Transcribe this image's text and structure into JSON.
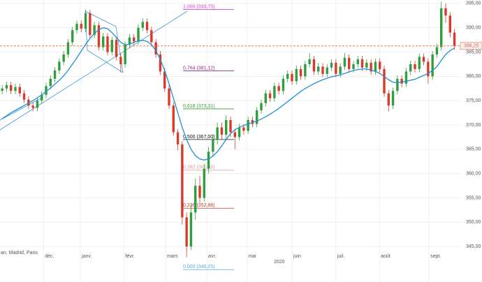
{
  "chart_data": {
    "type": "candlestick",
    "source_label": "an, Madrid, Paris",
    "year_label": "2020",
    "up_color": "#2e9e3e",
    "down_color": "#d93a2b",
    "x": [
      0,
      1,
      2,
      3,
      4,
      5,
      6,
      7,
      8,
      9,
      10,
      11,
      12,
      13,
      14,
      15,
      16,
      17,
      18,
      19,
      20,
      21,
      22,
      23,
      24,
      25,
      26,
      27,
      28,
      29,
      30,
      31,
      32,
      33,
      34,
      35,
      36,
      37,
      38,
      39,
      40,
      41,
      42,
      43,
      44,
      45,
      46,
      47,
      48,
      49,
      50,
      51,
      52,
      53,
      54,
      55,
      56,
      57,
      58,
      59,
      60,
      61,
      62,
      63,
      64,
      65,
      66,
      67,
      68,
      69,
      70,
      71,
      72,
      73,
      74,
      75,
      76,
      77,
      78,
      79,
      80,
      81,
      82,
      83,
      84,
      85,
      86,
      87,
      88,
      89,
      90,
      91,
      92,
      93,
      94,
      95,
      96,
      97,
      98,
      99,
      100,
      101,
      102,
      103
    ],
    "open": [
      377.0,
      377.5,
      378.2,
      377.0,
      377.8,
      376.5,
      375.2,
      374.0,
      373.5,
      375.0,
      376.2,
      378.0,
      379.5,
      381.2,
      383.0,
      384.5,
      387.0,
      389.5,
      390.8,
      389.8,
      393.0,
      388.5,
      390.5,
      386.0,
      388.2,
      385.0,
      387.5,
      384.0,
      382.5,
      386.5,
      388.0,
      387.2,
      390.0,
      391.2,
      389.5,
      387.0,
      384.5,
      381.0,
      377.5,
      374.0,
      368.5,
      366.0,
      351.0,
      345.0,
      352.0,
      357.5,
      355.0,
      361.0,
      364.5,
      367.0,
      369.5,
      368.0,
      371.0,
      368.5,
      367.5,
      369.5,
      368.8,
      371.0,
      370.2,
      373.0,
      374.5,
      376.5,
      375.5,
      378.0,
      377.0,
      379.5,
      380.5,
      379.0,
      381.5,
      380.0,
      382.5,
      383.5,
      381.0,
      382.0,
      380.5,
      381.8,
      382.8,
      380.5,
      382.0,
      383.8,
      381.5,
      382.5,
      383.5,
      381.8,
      382.8,
      381.0,
      383.0,
      381.5,
      376.5,
      374.0,
      377.0,
      379.5,
      378.5,
      381.0,
      382.5,
      381.5,
      384.0,
      383.0,
      380.0,
      384.5,
      386.0,
      394.0,
      392.5,
      389.0
    ],
    "high": [
      378.2,
      378.9,
      378.9,
      378.5,
      378.5,
      377.2,
      375.9,
      374.7,
      375.7,
      376.9,
      378.7,
      380.2,
      381.9,
      383.7,
      385.2,
      387.7,
      390.2,
      391.5,
      391.5,
      393.8,
      393.7,
      391.2,
      391.2,
      388.9,
      388.9,
      388.2,
      388.2,
      384.7,
      387.2,
      388.7,
      388.7,
      390.7,
      391.9,
      391.9,
      390.2,
      387.7,
      385.2,
      381.7,
      378.2,
      374.7,
      369.2,
      366.7,
      352.0,
      353.5,
      359.0,
      359.5,
      362.0,
      365.5,
      368.0,
      370.5,
      370.5,
      372.0,
      371.7,
      369.2,
      370.2,
      370.2,
      371.7,
      371.7,
      373.7,
      375.2,
      377.2,
      377.2,
      378.7,
      378.7,
      380.2,
      381.2,
      381.2,
      382.2,
      382.2,
      383.2,
      384.8,
      384.2,
      382.7,
      382.7,
      382.5,
      383.5,
      383.5,
      382.7,
      384.8,
      384.5,
      383.2,
      384.2,
      384.2,
      383.5,
      383.5,
      383.7,
      383.7,
      382.2,
      377.2,
      377.7,
      380.2,
      380.2,
      381.7,
      383.2,
      383.2,
      384.7,
      384.7,
      383.7,
      385.2,
      386.7,
      395.3,
      395.0,
      393.2,
      389.7
    ],
    "low": [
      376.3,
      376.8,
      376.3,
      376.3,
      375.8,
      374.5,
      373.3,
      372.8,
      372.8,
      374.3,
      375.5,
      377.3,
      378.8,
      380.5,
      382.3,
      383.8,
      386.3,
      388.8,
      389.1,
      389.1,
      387.8,
      387.8,
      385.3,
      385.3,
      384.3,
      384.3,
      383.3,
      380.8,
      381.8,
      385.8,
      386.5,
      386.5,
      389.3,
      388.8,
      386.3,
      383.8,
      380.3,
      376.8,
      373.3,
      367.8,
      364.8,
      349.5,
      342.8,
      344.3,
      350.5,
      354.0,
      354.3,
      360.0,
      363.5,
      366.0,
      367.0,
      367.0,
      367.5,
      365.0,
      366.8,
      368.0,
      368.1,
      369.5,
      369.5,
      372.3,
      373.8,
      374.8,
      374.8,
      376.3,
      376.3,
      378.8,
      378.3,
      378.3,
      379.3,
      379.3,
      381.8,
      380.3,
      380.3,
      379.8,
      379.8,
      381.1,
      379.8,
      379.8,
      381.3,
      380.8,
      380.8,
      381.8,
      381.1,
      381.1,
      380.3,
      380.3,
      380.8,
      375.8,
      372.8,
      373.3,
      376.3,
      377.8,
      377.8,
      380.3,
      380.8,
      380.8,
      382.3,
      378.5,
      379.3,
      383.8,
      385.3,
      391.0,
      388.0,
      385.5
    ],
    "close": [
      377.5,
      378.2,
      377.0,
      377.8,
      376.5,
      375.2,
      374.0,
      373.5,
      375.0,
      376.2,
      378.0,
      379.5,
      381.2,
      383.0,
      384.5,
      387.0,
      389.5,
      390.8,
      389.8,
      393.0,
      388.5,
      390.5,
      386.0,
      388.2,
      385.0,
      387.5,
      384.0,
      382.5,
      386.5,
      388.0,
      387.2,
      390.0,
      391.2,
      389.5,
      387.0,
      384.5,
      381.0,
      377.5,
      374.0,
      368.5,
      366.0,
      351.0,
      345.0,
      352.0,
      357.5,
      355.0,
      361.0,
      364.5,
      367.0,
      369.5,
      368.0,
      371.0,
      368.5,
      367.5,
      369.5,
      368.8,
      371.0,
      370.2,
      373.0,
      374.5,
      376.5,
      375.5,
      378.0,
      377.0,
      379.5,
      380.5,
      379.0,
      381.5,
      380.0,
      382.5,
      383.5,
      381.0,
      382.0,
      380.5,
      381.8,
      382.8,
      380.5,
      382.0,
      383.8,
      381.5,
      382.5,
      383.5,
      381.8,
      382.8,
      381.0,
      383.0,
      381.5,
      376.5,
      374.0,
      377.0,
      379.5,
      378.5,
      381.0,
      382.5,
      381.5,
      384.0,
      383.0,
      380.0,
      384.5,
      386.0,
      394.0,
      392.5,
      389.0,
      386.25
    ],
    "moving_average": {
      "color": "#1f8fd6",
      "values": [
        371.3,
        371.9,
        372.5,
        373.0,
        373.5,
        374.0,
        374.5,
        375.0,
        375.6,
        376.2,
        376.9,
        377.6,
        378.4,
        379.2,
        380.1,
        381.2,
        382.5,
        383.8,
        385.2,
        386.6,
        387.8,
        388.8,
        389.6,
        390.0,
        389.8,
        389.0,
        388.0,
        387.0,
        386.5,
        386.6,
        387.0,
        387.3,
        387.4,
        387.2,
        386.5,
        385.3,
        383.5,
        381.2,
        378.5,
        375.5,
        372.5,
        369.5,
        367.0,
        365.0,
        363.7,
        363.0,
        362.8,
        363.0,
        363.6,
        364.5,
        365.7,
        367.0,
        368.2,
        369.0,
        369.5,
        369.9,
        370.2,
        370.5,
        370.8,
        371.2,
        371.7,
        372.2,
        372.8,
        373.4,
        374.1,
        374.8,
        375.5,
        376.2,
        376.9,
        377.5,
        378.0,
        378.5,
        378.9,
        379.3,
        379.6,
        379.9,
        380.1,
        380.3,
        380.6,
        380.9,
        381.2,
        381.4,
        381.5,
        381.5,
        381.3,
        381.0,
        380.6,
        380.0,
        379.3,
        378.8,
        378.7,
        378.8,
        379.0,
        379.2,
        379.4,
        379.8,
        380.2,
        380.6,
        381.2,
        382.0,
        383.3,
        384.5,
        385.3,
        385.8
      ]
    },
    "fibonacci": [
      {
        "label": "1,000 (393,75)",
        "value": 393.75,
        "color": "#d63fd6"
      },
      {
        "label": "0,764 (381,12)",
        "value": 381.12,
        "color": "#8a2d8a"
      },
      {
        "label": "0,618 (373,31)",
        "value": 373.31,
        "color": "#3a9a3a"
      },
      {
        "label": "0,500 (367,00)",
        "value": 367.0,
        "color": "#111111"
      },
      {
        "label": "0,382 (360,69)",
        "value": 360.69,
        "color": "#d99a9a"
      },
      {
        "label": "0,236 (352,88)",
        "value": 352.88,
        "color": "#c0392b"
      },
      {
        "label": "0,000 (340,25)",
        "value": 340.25,
        "color": "#5aa9d8"
      }
    ],
    "last_price": {
      "value": 386.25,
      "label": "386,25",
      "color": "#e8623a"
    },
    "xlim": [
      -0.5,
      104.5
    ],
    "xticks": [
      {
        "value": 9.4,
        "label": "déc."
      },
      {
        "value": 17.8,
        "label": "janv."
      },
      {
        "value": 27.7,
        "label": "févr."
      },
      {
        "value": 37.2,
        "label": "mars"
      },
      {
        "value": 46.6,
        "label": "avr."
      },
      {
        "value": 55.7,
        "label": "mai"
      },
      {
        "value": 66.0,
        "label": "juin"
      },
      {
        "value": 76.0,
        "label": "juil."
      },
      {
        "value": 85.9,
        "label": "août"
      },
      {
        "value": 97.2,
        "label": "sept."
      }
    ],
    "ylim": [
      337.7,
      395.7
    ],
    "yticks": [
      {
        "value": 345,
        "label": "345,00"
      },
      {
        "value": 350,
        "label": "350,00"
      },
      {
        "value": 355,
        "label": "355,00"
      },
      {
        "value": 360,
        "label": "360,00"
      },
      {
        "value": 365,
        "label": "365,00"
      },
      {
        "value": 370,
        "label": "370,00"
      },
      {
        "value": 375,
        "label": "375,00"
      },
      {
        "value": 380,
        "label": "380,00"
      },
      {
        "value": 385,
        "label": "385,00"
      },
      {
        "value": 390,
        "label": "390,00"
      },
      {
        "value": 395,
        "label": "395,00"
      }
    ],
    "grid": true
  }
}
